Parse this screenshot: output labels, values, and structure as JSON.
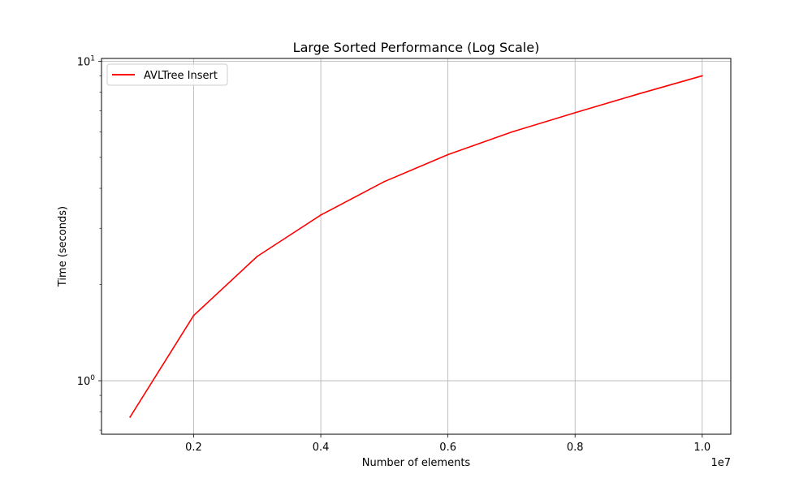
{
  "chart_data": {
    "type": "line",
    "title": "Large Sorted Performance (Log Scale)",
    "xlabel": "Number of elements",
    "ylabel": "Time (seconds)",
    "x_offset_text": "1e7",
    "x": [
      1000000,
      2000000,
      3000000,
      4000000,
      5000000,
      6000000,
      7000000,
      8000000,
      9000000,
      10000000
    ],
    "series": [
      {
        "name": "AVLTree Insert",
        "color": "#ff0000",
        "values": [
          0.77,
          1.6,
          2.45,
          3.3,
          4.2,
          5.1,
          6.0,
          6.9,
          7.9,
          9.0
        ]
      }
    ],
    "xlim": [
      550000,
      10450000
    ],
    "ylim": [
      0.68,
      10.2
    ],
    "yscale": "log",
    "x_ticks": [
      {
        "value": 2000000,
        "label": "0.2"
      },
      {
        "value": 4000000,
        "label": "0.4"
      },
      {
        "value": 6000000,
        "label": "0.6"
      },
      {
        "value": 8000000,
        "label": "0.8"
      },
      {
        "value": 10000000,
        "label": "1.0"
      }
    ],
    "y_major_ticks": [
      {
        "value": 1,
        "base": "10",
        "exp": "0"
      },
      {
        "value": 10,
        "base": "10",
        "exp": "1"
      }
    ],
    "y_minor_ticks": [
      0.7,
      0.8,
      0.9,
      2,
      3,
      4,
      5,
      6,
      7,
      8,
      9
    ],
    "grid": true,
    "legend_position": "top-left"
  }
}
